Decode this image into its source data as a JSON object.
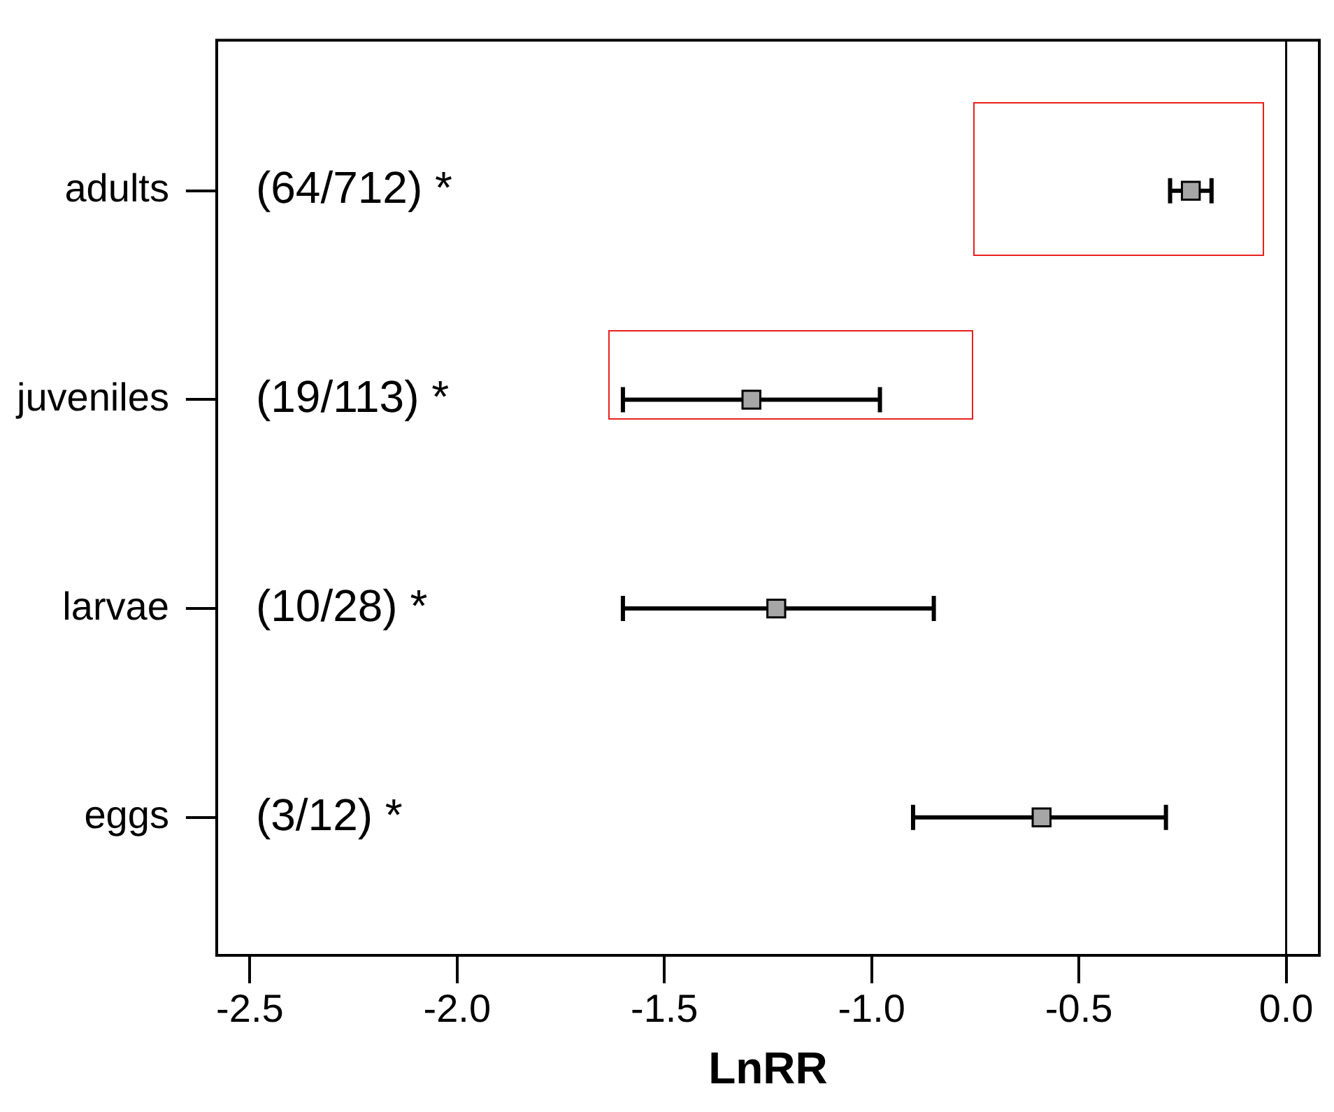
{
  "chart_data": {
    "type": "scatter",
    "orientation": "horizontal",
    "xlabel": "LnRR",
    "categories": [
      "adults",
      "juveniles",
      "larvae",
      "eggs"
    ],
    "values": [
      -0.23,
      -1.29,
      -1.23,
      -0.59
    ],
    "errors": [
      [
        -0.28,
        -0.18
      ],
      [
        -1.6,
        -0.98
      ],
      [
        -1.6,
        -0.85
      ],
      [
        -0.9,
        -0.29
      ]
    ],
    "color": "#a6a6a6",
    "marker": "square",
    "xlim": [
      -2.58,
      0.08
    ],
    "xticks": [
      -2.5,
      {
        "value": -2,
        "label": "-2.0"
      },
      -1.5,
      {
        "value": -1,
        "label": "-1.0"
      },
      -0.5,
      {
        "value": 0,
        "label": "0.0"
      }
    ],
    "ref_lines": [
      {
        "axis": "x",
        "value": 0,
        "color": "#000000"
      }
    ],
    "annotations": [
      "(64/712) *",
      "(19/113) *",
      "(10/28) *",
      "(3/12) *"
    ],
    "grid": false,
    "legend": false
  }
}
